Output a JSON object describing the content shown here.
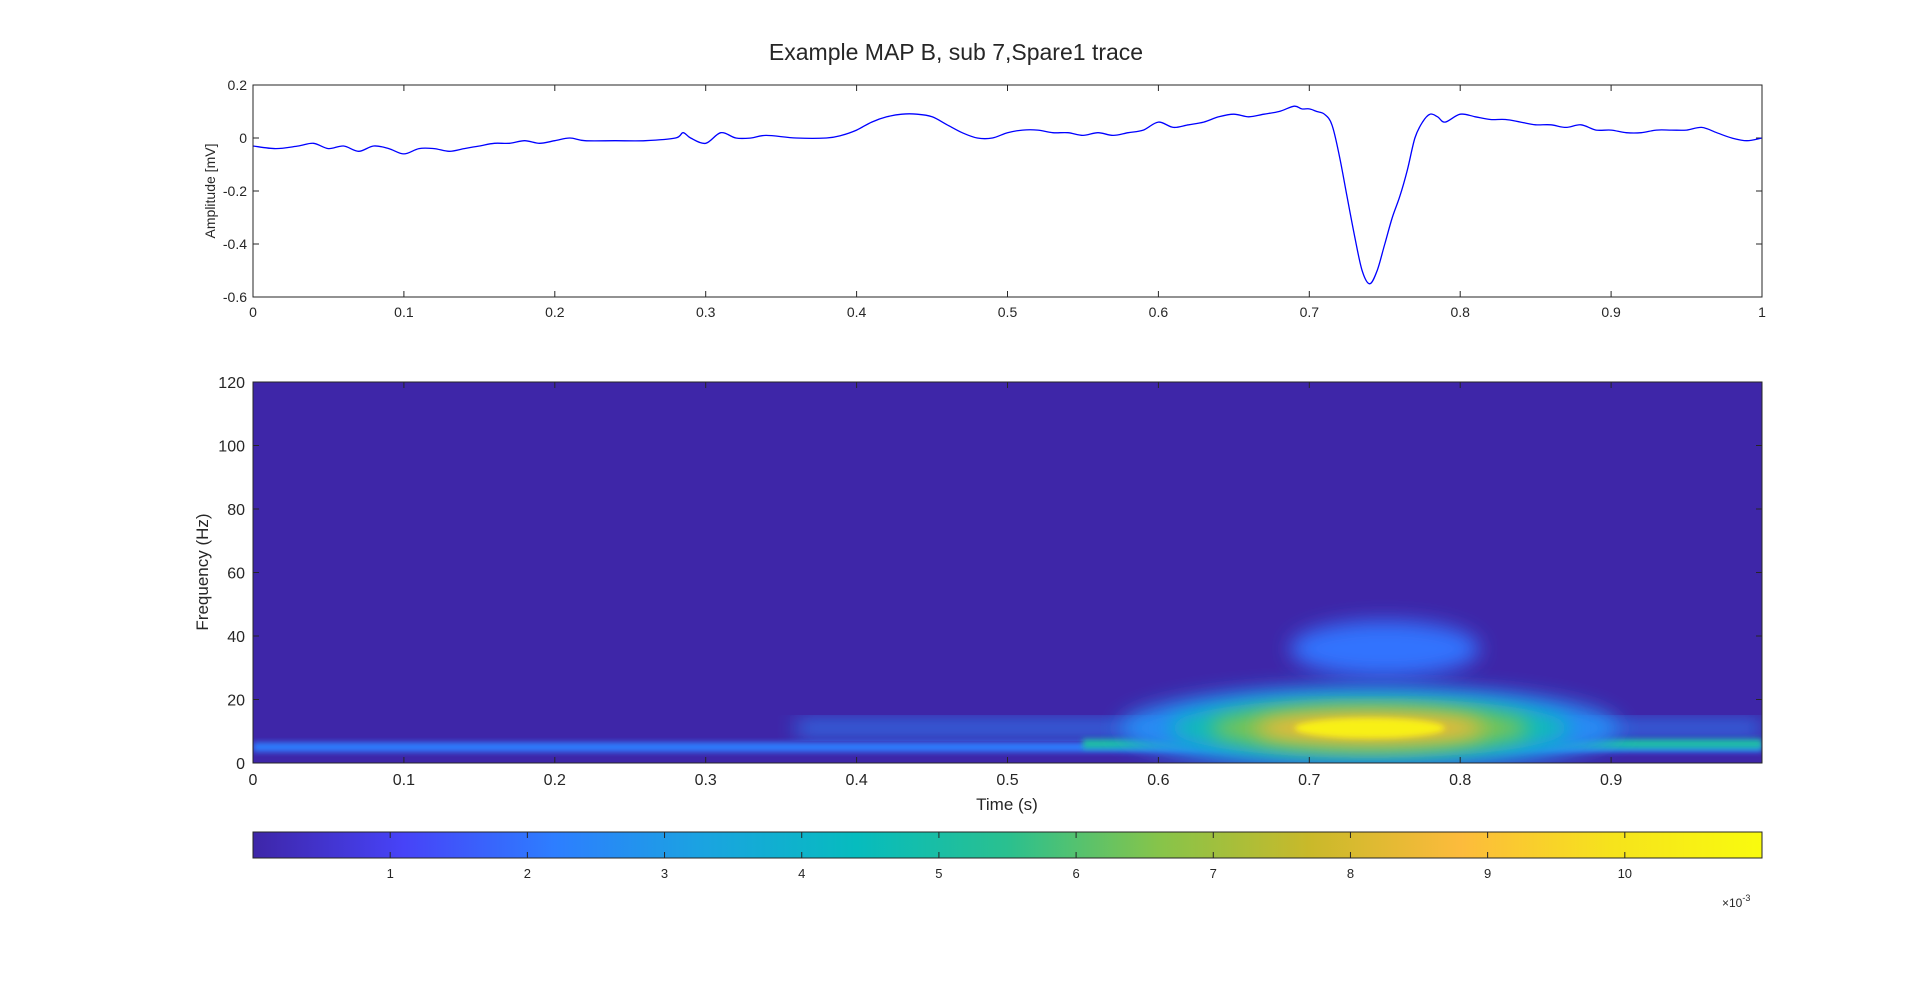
{
  "figure_title": "Example MAP B, sub 7,Spare1 trace",
  "chart_data": [
    {
      "type": "line",
      "title": "Example MAP B, sub 7,Spare1 trace",
      "xlabel": "",
      "ylabel": "Amplitude [mV]",
      "xlim": [
        0,
        1
      ],
      "ylim": [
        -0.6,
        0.2
      ],
      "xticks": [
        "0",
        "0.1",
        "0.2",
        "0.3",
        "0.4",
        "0.5",
        "0.6",
        "0.7",
        "0.8",
        "0.9",
        "1"
      ],
      "yticks": [
        "-0.6",
        "-0.4",
        "-0.2",
        "0",
        "0.2"
      ],
      "grid": false,
      "series_color": "#0000ff",
      "x": [
        0,
        0.015,
        0.03,
        0.04,
        0.05,
        0.06,
        0.07,
        0.08,
        0.09,
        0.1,
        0.11,
        0.12,
        0.13,
        0.14,
        0.15,
        0.16,
        0.17,
        0.18,
        0.19,
        0.2,
        0.21,
        0.22,
        0.24,
        0.26,
        0.28,
        0.285,
        0.29,
        0.3,
        0.31,
        0.32,
        0.33,
        0.34,
        0.36,
        0.38,
        0.39,
        0.4,
        0.41,
        0.42,
        0.43,
        0.44,
        0.45,
        0.46,
        0.47,
        0.48,
        0.49,
        0.5,
        0.51,
        0.52,
        0.53,
        0.54,
        0.55,
        0.56,
        0.57,
        0.58,
        0.59,
        0.6,
        0.61,
        0.62,
        0.63,
        0.64,
        0.65,
        0.66,
        0.67,
        0.68,
        0.69,
        0.695,
        0.7,
        0.705,
        0.71,
        0.715,
        0.72,
        0.725,
        0.73,
        0.735,
        0.74,
        0.745,
        0.75,
        0.755,
        0.76,
        0.765,
        0.77,
        0.775,
        0.78,
        0.785,
        0.79,
        0.8,
        0.81,
        0.82,
        0.83,
        0.84,
        0.85,
        0.86,
        0.87,
        0.88,
        0.89,
        0.9,
        0.91,
        0.92,
        0.93,
        0.94,
        0.95,
        0.96,
        0.97,
        0.98,
        0.99,
        1.0
      ],
      "y": [
        -0.03,
        -0.04,
        -0.03,
        -0.02,
        -0.04,
        -0.03,
        -0.05,
        -0.03,
        -0.04,
        -0.06,
        -0.04,
        -0.04,
        -0.05,
        -0.04,
        -0.03,
        -0.02,
        -0.02,
        -0.01,
        -0.02,
        -0.01,
        0.0,
        -0.01,
        -0.01,
        -0.01,
        0.0,
        0.02,
        0.0,
        -0.02,
        0.02,
        0.0,
        0.0,
        0.01,
        0.0,
        0.0,
        0.01,
        0.03,
        0.06,
        0.08,
        0.09,
        0.09,
        0.08,
        0.05,
        0.02,
        0.0,
        0.0,
        0.02,
        0.03,
        0.03,
        0.02,
        0.02,
        0.01,
        0.02,
        0.01,
        0.02,
        0.03,
        0.06,
        0.04,
        0.05,
        0.06,
        0.08,
        0.09,
        0.08,
        0.09,
        0.1,
        0.12,
        0.11,
        0.11,
        0.1,
        0.09,
        0.05,
        -0.07,
        -0.22,
        -0.37,
        -0.5,
        -0.55,
        -0.5,
        -0.4,
        -0.3,
        -0.22,
        -0.12,
        0.0,
        0.06,
        0.09,
        0.08,
        0.06,
        0.09,
        0.08,
        0.07,
        0.07,
        0.06,
        0.05,
        0.05,
        0.04,
        0.05,
        0.03,
        0.03,
        0.02,
        0.02,
        0.03,
        0.03,
        0.03,
        0.04,
        0.02,
        0.0,
        -0.01,
        0.0
      ]
    },
    {
      "type": "heatmap",
      "xlabel": "Time (s)",
      "ylabel": "Frequency (Hz)",
      "xlim": [
        0,
        1
      ],
      "ylim": [
        0,
        120
      ],
      "xticks": [
        "0",
        "0.1",
        "0.2",
        "0.3",
        "0.4",
        "0.5",
        "0.6",
        "0.7",
        "0.8",
        "0.9"
      ],
      "yticks": [
        "0",
        "20",
        "40",
        "60",
        "80",
        "100",
        "120"
      ],
      "colormap": "parula",
      "colormap_stops": [
        "#3e26a8",
        "#4743f8",
        "#2d7eff",
        "#1aa4e0",
        "#06bcbe",
        "#2ac08f",
        "#86c44a",
        "#c9b92a",
        "#fcbb3c",
        "#f6e31c",
        "#f9fb0e"
      ],
      "color_range": [
        0,
        0.011
      ],
      "features": [
        {
          "label": "main energy blob",
          "time": 0.74,
          "frequency": 11,
          "value": 0.0105
        },
        {
          "label": "upper lobe",
          "time": 0.75,
          "frequency": 36,
          "value": 0.002
        },
        {
          "label": "low-frequency band",
          "time_range": [
            0.4,
            1.0
          ],
          "frequency": 6,
          "value": 0.005
        }
      ],
      "colorbar": {
        "ticks": [
          "1",
          "2",
          "3",
          "4",
          "5",
          "6",
          "7",
          "8",
          "9",
          "10"
        ],
        "tick_values": [
          0.001,
          0.002,
          0.003,
          0.004,
          0.005,
          0.006,
          0.007,
          0.008,
          0.009,
          0.01
        ],
        "exponent_base": "×10",
        "exponent_power": "-3"
      }
    }
  ]
}
